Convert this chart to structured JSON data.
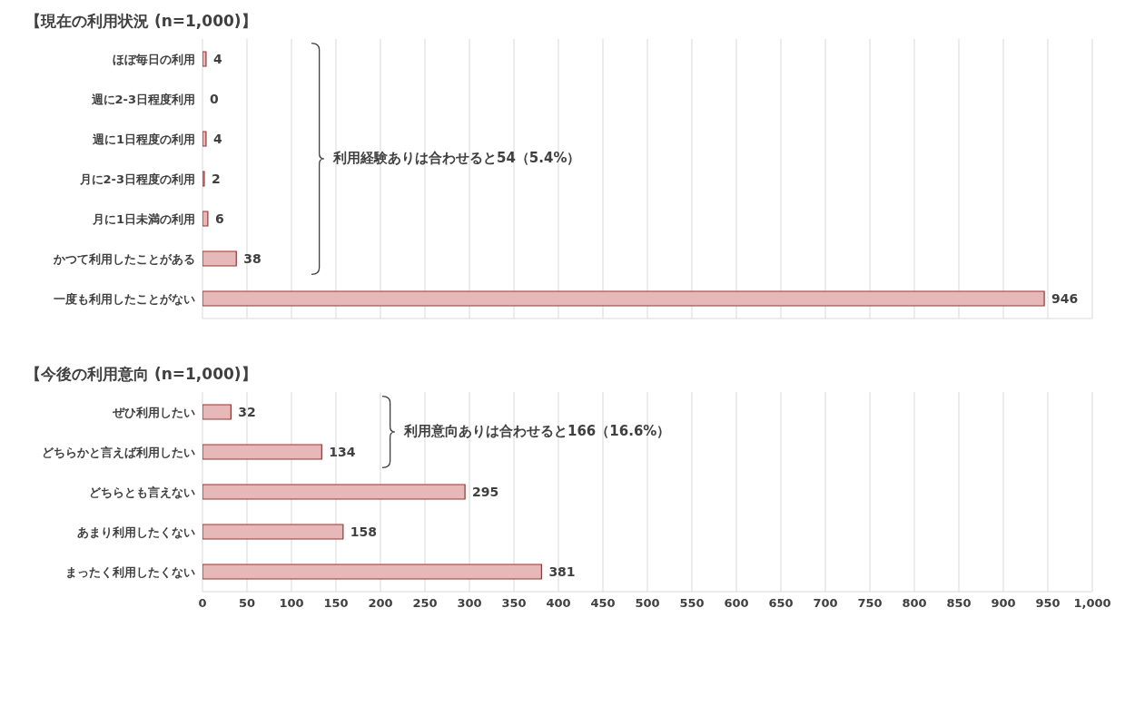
{
  "chart_data": [
    {
      "type": "bar",
      "orientation": "horizontal",
      "title": "【現在の利用状況 (n=1,000)】",
      "categories": [
        "ほぼ毎日の利用",
        "週に2-3日程度利用",
        "週に1日程度の利用",
        "月に2-3日程度の利用",
        "月に1日未満の利用",
        "かつて利用したことがある",
        "一度も利用したことがない"
      ],
      "values": [
        4,
        0,
        4,
        2,
        6,
        38,
        946
      ],
      "color": "#e6b8b7",
      "data_labels": true,
      "xlim": [
        0,
        1000
      ],
      "xticks": [
        0,
        50,
        100,
        150,
        200,
        250,
        300,
        350,
        400,
        450,
        500,
        550,
        600,
        650,
        700,
        750,
        800,
        850,
        900,
        950,
        1000
      ],
      "grid": "x",
      "tick_labels": "y",
      "annotations": [
        "利用経験ありは合わせると54（5.4%）"
      ]
    },
    {
      "type": "bar",
      "orientation": "horizontal",
      "title": "【今後の利用意向 (n=1,000)】",
      "categories": [
        "ぜひ利用したい",
        "どちらかと言えば利用したい",
        "どちらとも言えない",
        "あまり利用したくない",
        "まったく利用したくない"
      ],
      "values": [
        32,
        134,
        295,
        158,
        381
      ],
      "color": "#e6b8b7",
      "data_labels": true,
      "xlim": [
        0,
        1000
      ],
      "xticks": [
        0,
        50,
        100,
        150,
        200,
        250,
        300,
        350,
        400,
        450,
        500,
        550,
        600,
        650,
        700,
        750,
        800,
        850,
        900,
        950,
        {
          "value": 1000,
          "label": "1,000"
        }
      ],
      "grid": "x",
      "annotations": [
        "利用意向ありは合わせると166（16.6%）"
      ]
    }
  ]
}
